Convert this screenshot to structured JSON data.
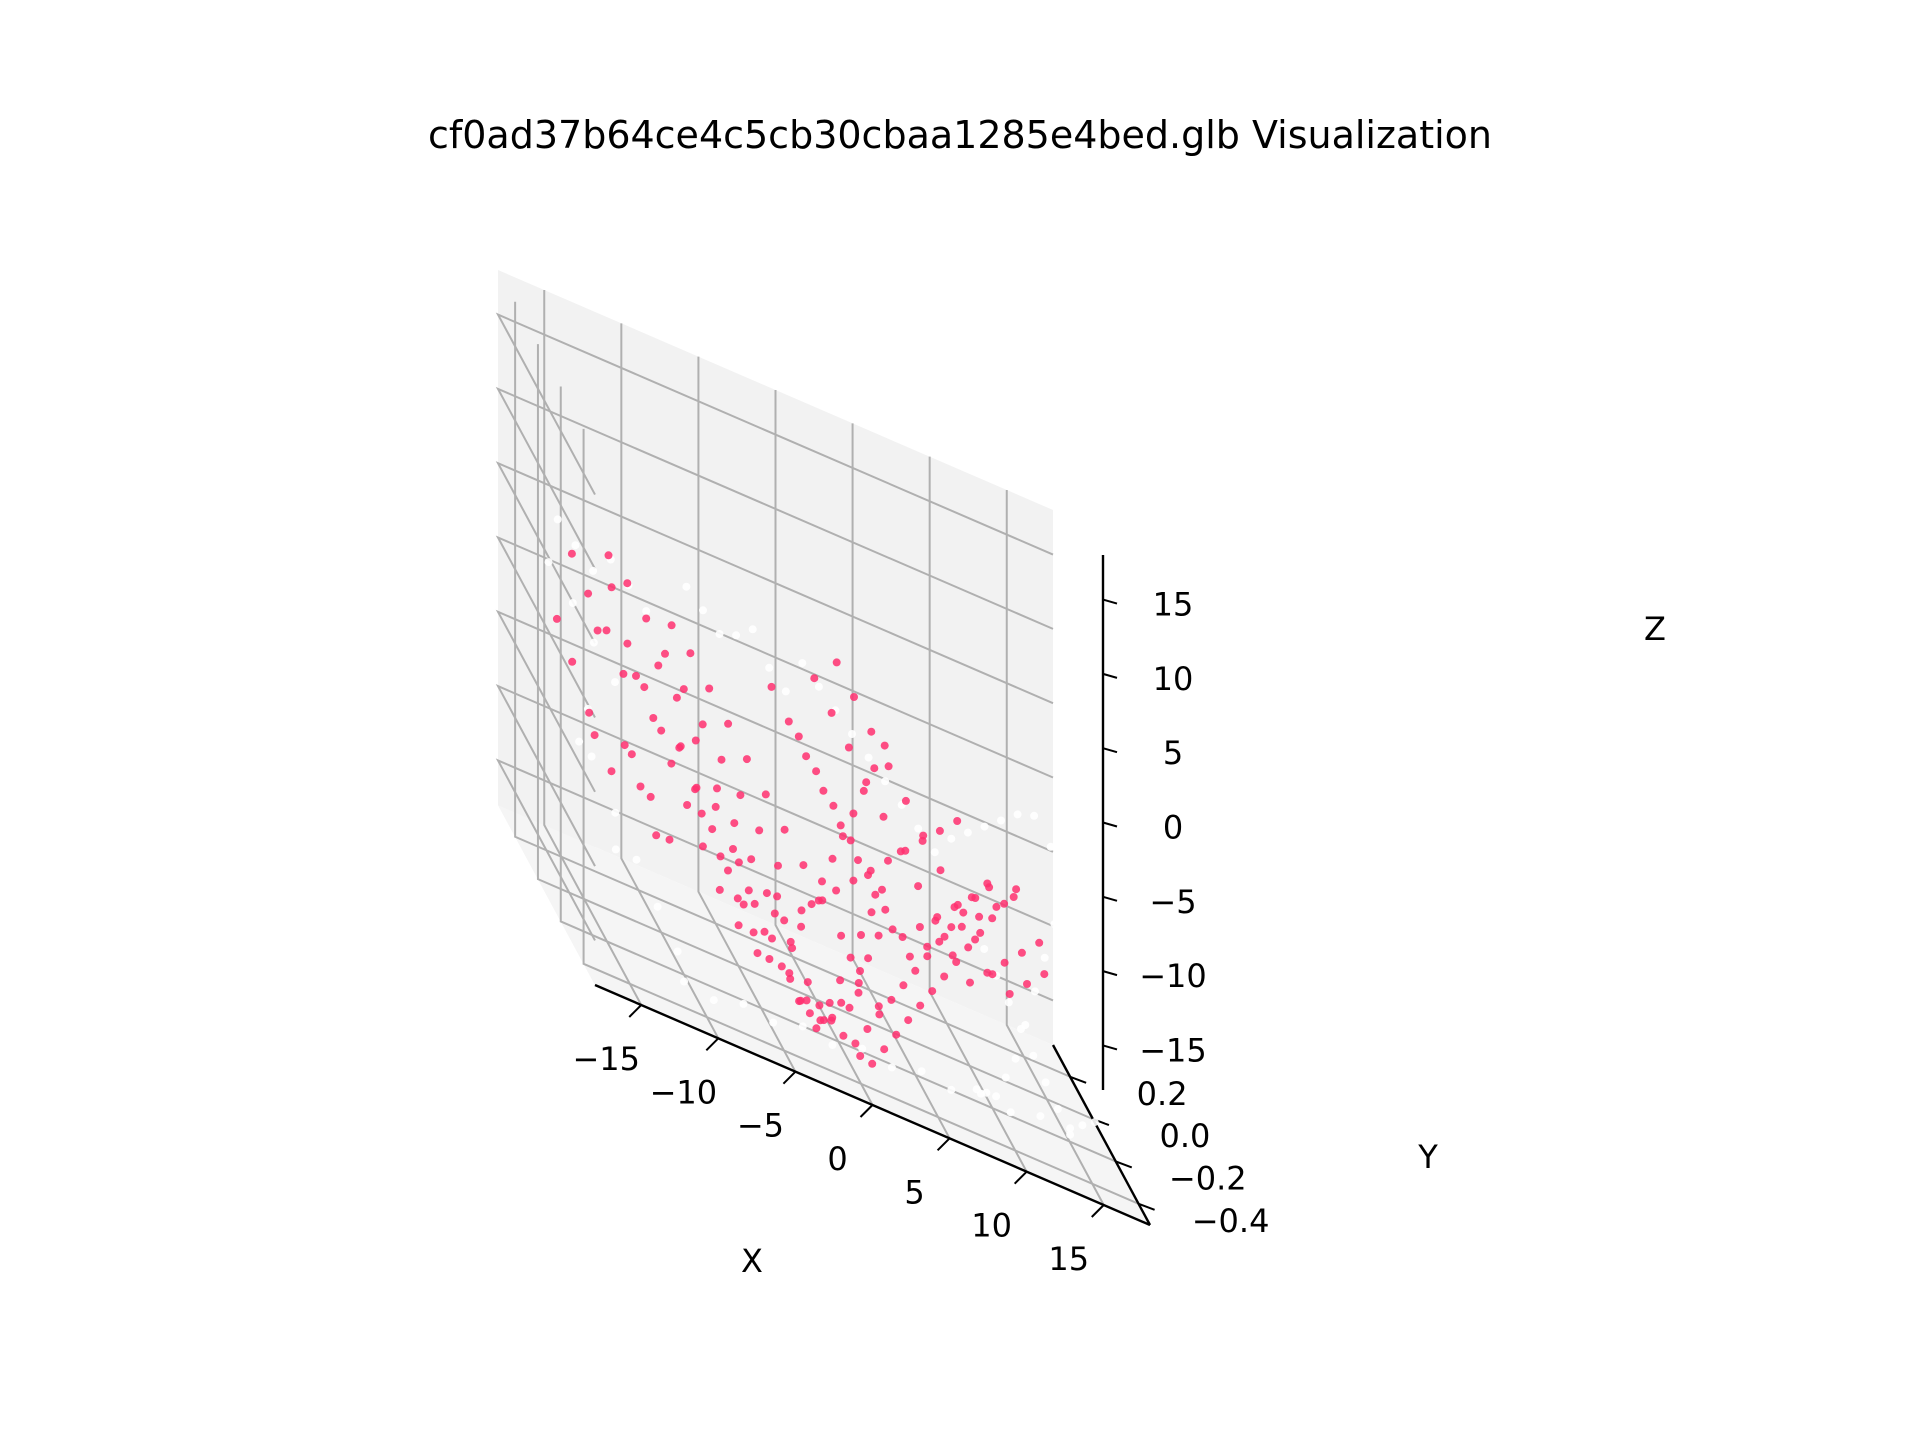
{
  "chart_data": {
    "type": "scatter",
    "title": "cf0ad37b64ce4c5cb30cbaa1285e4bed.glb Visualization",
    "xlabel": "X",
    "ylabel": "Y",
    "zlabel": "Z",
    "xlim": [
      -18,
      18
    ],
    "ylim": [
      -0.5,
      0.35
    ],
    "zlim": [
      -18,
      18
    ],
    "xticks": [
      -15,
      -10,
      -5,
      0,
      5,
      10,
      15
    ],
    "yticks": [
      -0.4,
      -0.2,
      0.0,
      0.2
    ],
    "zticks": [
      -15,
      -10,
      -5,
      0,
      5,
      10,
      15
    ],
    "xtick_labels": [
      "−15",
      "−10",
      "−5",
      "0",
      "5",
      "10",
      "15"
    ],
    "ytick_labels": [
      "−0.4",
      "−0.2",
      "0.0",
      "0.2"
    ],
    "ztick_labels": [
      "−15",
      "−10",
      "−5",
      "0",
      "5",
      "10",
      "15"
    ],
    "grid": true,
    "colors": {
      "points": "#ff3070",
      "faint_points": "#ffffff",
      "pane": "#f2f2f2",
      "pane_side": "#ececec",
      "pane_floor": "#f5f5f5",
      "grid": "#b0b0b0"
    },
    "series": [
      {
        "marker": "points",
        "x": [
          -14.7,
          -14.0,
          -13.2,
          -12.4,
          -11.6,
          -12.8,
          -11.0,
          -10.2,
          -9.4,
          -8.6,
          -10.8,
          -9.8,
          -8.8,
          -7.8,
          -6.8,
          -12.0,
          -11.2,
          -10.4,
          -9.6,
          -13.5,
          -12.6,
          -11.7,
          -10.9,
          -8.0,
          -7.2,
          -6.4,
          -5.6,
          -4.8,
          -9.2,
          -8.4,
          -7.6,
          -6.6,
          -5.7,
          -4.9,
          -4.1,
          -3.3,
          -10.6,
          -9.7,
          -8.9,
          -8.1,
          -7.3,
          -6.5,
          -5.5,
          -4.5,
          -3.6,
          -2.7,
          -1.9,
          -6.0,
          -5.2,
          -4.3,
          -3.4,
          -2.5,
          -1.6,
          -0.7,
          0.2,
          -7.8,
          -6.9,
          -6.1,
          -5.3,
          -4.4,
          -3.5,
          -2.6,
          -1.8,
          -0.9,
          0.0,
          0.9,
          1.8,
          -4.6,
          -3.7,
          -2.8,
          -1.9,
          -1.0,
          -0.1,
          0.8,
          1.7,
          2.6,
          3.5,
          -2.2,
          -1.3,
          -0.4,
          0.5,
          1.4,
          2.3,
          3.2,
          4.1,
          5.0,
          5.9,
          -5.5,
          -4.6,
          -3.8,
          -3.0,
          -2.1,
          -1.2,
          -0.3,
          0.6,
          1.5,
          2.4,
          3.3,
          4.2,
          5.1,
          6.0,
          6.9,
          0.4,
          1.3,
          2.2,
          3.1,
          4.0,
          4.9,
          5.8,
          6.7,
          7.6,
          8.5,
          9.4,
          10.3,
          -1.0,
          -0.1,
          0.8,
          1.7,
          2.6,
          3.5,
          4.4,
          5.3,
          6.2,
          7.1,
          8.0,
          8.9,
          9.8,
          10.7,
          11.6,
          2.0,
          2.9,
          3.8,
          4.7,
          5.6,
          6.5,
          7.4,
          8.3,
          9.2,
          10.1,
          11.0,
          11.9,
          12.8,
          13.7,
          3.6,
          4.5,
          5.4,
          6.3,
          7.2,
          8.1,
          9.0,
          9.9,
          10.8,
          11.7,
          12.6,
          13.5,
          14.4,
          -3.0,
          -2.0,
          -1.0,
          0.0,
          1.0,
          2.0,
          3.0,
          4.0,
          5.0,
          6.0,
          7.0,
          8.0,
          9.0,
          10.0,
          11.0,
          -0.5,
          0.5,
          1.5,
          2.5,
          3.5,
          4.5,
          5.5,
          6.5,
          7.5,
          8.5,
          9.5,
          10.5,
          11.5,
          12.5,
          -8.0,
          -7.0,
          -6.0,
          -5.0,
          -4.0,
          -3.0,
          -2.0,
          -1.0,
          0.0,
          1.0,
          2.0,
          3.0,
          -11.5,
          -10.5,
          -9.5,
          -8.5,
          -7.5,
          -6.5,
          -5.5,
          -4.5,
          -3.5,
          -2.5
        ],
        "y": [
          0.28,
          0.24,
          0.2,
          0.26,
          0.22,
          0.18,
          0.3,
          0.27,
          0.23,
          0.19,
          0.15,
          0.12,
          0.09,
          0.16,
          0.13,
          0.05,
          0.02,
          -0.01,
          0.08,
          0.31,
          0.29,
          0.25,
          0.21,
          0.1,
          0.07,
          0.04,
          0.01,
          -0.02,
          -0.05,
          -0.08,
          -0.03,
          -0.06,
          -0.09,
          -0.12,
          -0.15,
          -0.11,
          0.14,
          0.11,
          0.06,
          0.03,
          0.0,
          -0.04,
          -0.07,
          -0.1,
          -0.13,
          -0.16,
          -0.19,
          -0.14,
          -0.17,
          -0.2,
          -0.23,
          -0.26,
          -0.29,
          -0.32,
          -0.35,
          -0.18,
          -0.21,
          -0.24,
          -0.27,
          -0.3,
          -0.33,
          -0.36,
          -0.39,
          -0.42,
          -0.38,
          -0.34,
          -0.31,
          -0.4,
          -0.37,
          -0.33,
          -0.3,
          -0.26,
          -0.23,
          -0.2,
          -0.17,
          -0.14,
          -0.11,
          -0.08,
          -0.05,
          -0.02,
          0.01,
          0.04,
          0.07,
          0.1,
          0.13,
          0.16,
          0.19,
          0.12,
          0.09,
          0.05,
          0.02,
          -0.01,
          -0.04,
          -0.07,
          -0.1,
          -0.13,
          -0.16,
          -0.19,
          -0.22,
          -0.25,
          -0.28,
          -0.31,
          0.2,
          0.17,
          0.14,
          0.11,
          0.08,
          0.05,
          0.02,
          -0.01,
          -0.04,
          -0.07,
          -0.1,
          -0.13,
          0.25,
          0.22,
          0.19,
          0.16,
          0.13,
          0.1,
          0.07,
          0.04,
          0.01,
          -0.02,
          -0.05,
          -0.08,
          -0.11,
          -0.14,
          -0.17,
          0.28,
          0.25,
          0.22,
          0.19,
          0.16,
          0.13,
          0.1,
          0.07,
          0.04,
          0.01,
          -0.02,
          -0.05,
          -0.08,
          -0.11,
          0.3,
          0.27,
          0.24,
          0.21,
          0.18,
          0.15,
          0.12,
          0.09,
          0.06,
          0.03,
          0.0,
          -0.03,
          -0.06,
          -0.44,
          -0.41,
          -0.38,
          -0.35,
          -0.32,
          -0.29,
          -0.26,
          -0.23,
          -0.2,
          -0.17,
          -0.14,
          -0.11,
          -0.08,
          -0.05,
          -0.02,
          -0.46,
          -0.43,
          -0.4,
          -0.37,
          -0.34,
          -0.31,
          -0.28,
          -0.25,
          -0.22,
          -0.19,
          -0.16,
          -0.13,
          -0.1,
          -0.07,
          0.18,
          0.15,
          0.12,
          0.09,
          0.06,
          0.03,
          0.0,
          -0.03,
          -0.06,
          -0.09,
          -0.12,
          -0.15,
          0.26,
          0.23,
          0.2,
          0.17,
          0.14,
          0.11,
          0.08,
          0.05,
          0.02,
          -0.01
        ],
        "z": [
          -3.0,
          -5.0,
          -7.5,
          -9.5,
          -11.0,
          -1.5,
          0.5,
          -2.5,
          -4.5,
          -6.5,
          -8.5,
          -10.5,
          -12.5,
          -3.5,
          -5.5,
          -7.0,
          -9.0,
          -11.5,
          -1.0,
          1.5,
          -0.5,
          -2.0,
          -4.0,
          -6.0,
          -8.0,
          -10.0,
          -12.0,
          -13.5,
          -4.5,
          -6.5,
          -8.5,
          -10.5,
          -12.5,
          -14.0,
          -15.0,
          -11.0,
          -3.0,
          -5.0,
          -7.0,
          -9.0,
          -11.0,
          -13.0,
          -14.5,
          -15.5,
          -12.0,
          -13.5,
          -15.0,
          -9.5,
          -11.5,
          -13.0,
          -14.5,
          -15.5,
          -16.0,
          -14.0,
          -12.5,
          -6.0,
          -8.0,
          -10.0,
          -12.0,
          -13.5,
          -15.0,
          -16.0,
          -14.5,
          -13.0,
          -11.5,
          -10.0,
          -8.5,
          -13.0,
          -14.5,
          -15.5,
          -16.0,
          -15.0,
          -13.5,
          -12.0,
          -10.5,
          -9.0,
          -7.5,
          -14.0,
          -13.0,
          -11.5,
          -10.0,
          -8.5,
          -7.0,
          -5.5,
          -4.0,
          -2.5,
          -1.0,
          -8.0,
          -9.5,
          -11.0,
          -12.5,
          -13.5,
          -12.0,
          -10.5,
          -9.0,
          -7.5,
          -6.0,
          -4.5,
          -3.0,
          -1.5,
          0.0,
          1.5,
          -3.0,
          -4.5,
          -6.0,
          -7.5,
          -9.0,
          -10.5,
          -11.5,
          -10.0,
          -8.5,
          -7.0,
          -5.5,
          -4.0,
          -1.0,
          -2.5,
          -4.0,
          -5.5,
          -7.0,
          -8.5,
          -10.0,
          -11.5,
          -12.5,
          -11.0,
          -9.5,
          -8.0,
          -6.5,
          -5.0,
          -3.5,
          0.5,
          -1.0,
          -2.5,
          -4.0,
          -5.5,
          -7.0,
          -8.5,
          -10.0,
          -11.5,
          -12.5,
          -11.0,
          -9.5,
          -8.0,
          -6.5,
          2.0,
          0.5,
          -1.0,
          -2.5,
          -4.0,
          -5.5,
          -7.0,
          -8.5,
          -10.0,
          -11.5,
          -12.0,
          -10.5,
          -9.0,
          -13.5,
          -14.5,
          -15.5,
          -16.0,
          -15.0,
          -14.0,
          -13.0,
          -12.0,
          -11.0,
          -10.0,
          -9.0,
          -8.0,
          -7.0,
          -6.0,
          -5.0,
          -15.5,
          -16.0,
          -15.0,
          -14.0,
          -13.0,
          -12.0,
          -11.0,
          -10.0,
          -9.0,
          -8.0,
          -7.0,
          -6.0,
          -5.0,
          -4.0,
          1.0,
          0.0,
          -1.5,
          -3.0,
          -4.5,
          -6.0,
          -7.5,
          -9.0,
          -10.5,
          -12.0,
          -13.5,
          -15.0,
          3.0,
          2.0,
          0.5,
          -1.0,
          -2.5,
          -4.0,
          -5.5,
          -7.0,
          -8.5,
          -10.0
        ]
      },
      {
        "marker": "faint_points",
        "x": [
          -14.5,
          -13.5,
          -12.5,
          -11.5,
          -10.5,
          -9.5,
          -15.0,
          -14.0,
          -13.0,
          -15.5,
          -16.0,
          -15.2,
          -14.2,
          -13.2,
          -12.2,
          -16.2,
          -15.7,
          -14.8,
          -6.0,
          -5.0,
          -4.0,
          -3.0,
          -2.0,
          -1.0,
          0.0,
          1.0,
          2.0,
          3.0,
          4.0,
          5.0,
          6.0,
          7.0,
          8.0,
          9.0,
          10.0,
          11.0,
          12.0,
          13.0,
          14.0,
          15.0,
          16.0,
          15.5,
          14.5,
          13.5,
          12.5,
          11.5,
          10.5,
          9.5,
          8.5,
          7.5,
          16.2,
          15.8,
          15.3,
          14.8,
          14.3,
          13.8,
          13.3,
          12.8,
          12.3,
          11.8,
          11.3,
          10.8,
          -12.0,
          -10.0,
          -8.0,
          -6.0,
          -4.0,
          -2.0,
          0.0,
          2.0,
          4.0,
          6.0,
          8.0,
          10.0,
          12.0,
          14.0
        ],
        "y": [
          0.3,
          0.28,
          0.26,
          0.24,
          0.22,
          0.2,
          0.1,
          0.05,
          0.0,
          -0.1,
          -0.2,
          -0.3,
          -0.35,
          -0.4,
          -0.44,
          0.15,
          -0.05,
          -0.25,
          0.32,
          0.31,
          0.3,
          0.29,
          0.28,
          0.27,
          0.26,
          0.25,
          0.24,
          0.23,
          0.22,
          0.21,
          0.2,
          0.19,
          0.18,
          0.17,
          0.16,
          0.15,
          0.14,
          0.13,
          0.12,
          0.11,
          0.1,
          0.0,
          -0.05,
          -0.1,
          -0.15,
          -0.2,
          -0.25,
          -0.3,
          -0.35,
          -0.4,
          -0.45,
          -0.42,
          -0.38,
          -0.34,
          -0.3,
          -0.26,
          -0.22,
          -0.18,
          -0.14,
          -0.1,
          -0.06,
          -0.02,
          -0.47,
          -0.46,
          -0.45,
          -0.44,
          -0.43,
          -0.42,
          -0.41,
          -0.4,
          -0.39,
          -0.38,
          -0.37,
          -0.36,
          -0.35,
          -0.34
        ],
        "z": [
          3.5,
          2.5,
          1.5,
          3.0,
          2.0,
          1.0,
          0.5,
          -1.0,
          -2.5,
          -4.0,
          -6.0,
          -8.0,
          -10.0,
          -12.0,
          -14.0,
          2.0,
          -7.0,
          -11.0,
          2.5,
          1.5,
          0.5,
          1.0,
          2.0,
          0.0,
          -1.0,
          1.5,
          0.5,
          -0.5,
          -1.5,
          -2.5,
          -3.5,
          -4.5,
          -5.5,
          -6.5,
          -5.0,
          -4.0,
          -3.0,
          -2.0,
          -1.0,
          -0.5,
          -2.0,
          -6.0,
          -8.0,
          -10.0,
          -12.0,
          -14.0,
          -15.0,
          -16.0,
          -15.5,
          -15.0,
          -12.0,
          -13.0,
          -14.0,
          -15.0,
          -16.0,
          -15.5,
          -14.5,
          -13.5,
          -12.5,
          -11.5,
          -10.5,
          -9.5,
          -15.5,
          -16.0,
          -15.5,
          -16.0,
          -15.5,
          -16.0,
          -15.5,
          -16.0,
          -15.5,
          -16.0,
          -15.5,
          -16.0,
          -15.5,
          -16.0
        ]
      }
    ]
  }
}
